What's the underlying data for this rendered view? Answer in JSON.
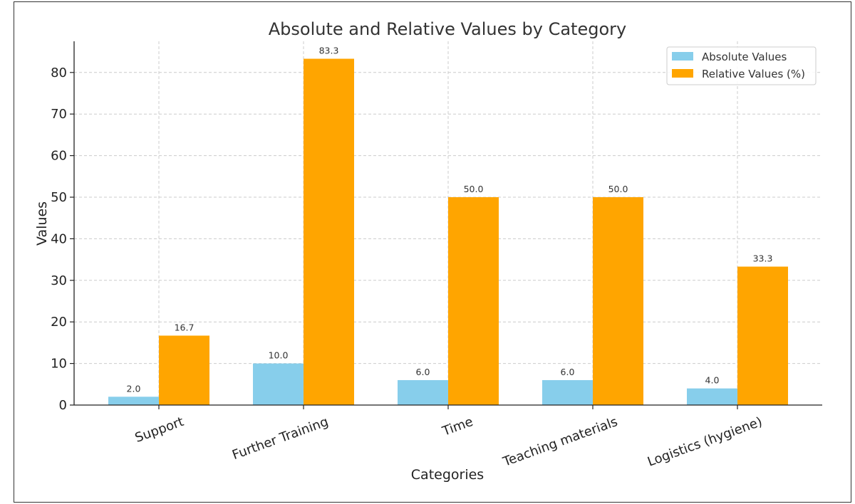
{
  "chart_data": {
    "type": "bar",
    "title": "Absolute and Relative Values by Category",
    "xlabel": "Categories",
    "ylabel": "Values",
    "categories": [
      "Support",
      "Further Training",
      "Time",
      "Teaching materials",
      "Logistics (hygiene)"
    ],
    "series": [
      {
        "name": "Absolute Values",
        "color": "#87CEEB",
        "values": [
          2.0,
          10.0,
          6.0,
          6.0,
          4.0
        ],
        "labels": [
          "2.0",
          "10.0",
          "6.0",
          "6.0",
          "4.0"
        ]
      },
      {
        "name": "Relative Values (%)",
        "color": "#FFA500",
        "values": [
          16.7,
          83.3,
          50.0,
          50.0,
          33.3
        ],
        "labels": [
          "16.7",
          "83.3",
          "50.0",
          "50.0",
          "33.3"
        ]
      }
    ],
    "yticks": [
      "0",
      "10",
      "20",
      "30",
      "40",
      "50",
      "60",
      "70",
      "80"
    ],
    "ylim": [
      0,
      87.5
    ],
    "grid": true,
    "legend_position": "top-right"
  }
}
